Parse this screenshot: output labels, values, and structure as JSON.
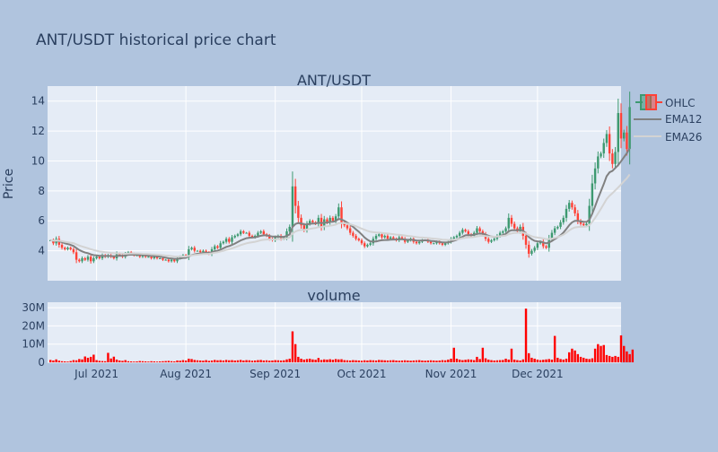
{
  "figure_title": "ANT/USDT historical price chart",
  "colors": {
    "paper_bg": "#b0c4de",
    "plot_bg": "#e5ecf6",
    "grid": "#ffffff",
    "text": "#2a3f5f",
    "increasing": "#3d9970",
    "decreasing": "#ff4136",
    "ema12": "#808080",
    "ema26": "#d3d3d3",
    "volume": "#ff0000"
  },
  "chart_data": [
    {
      "type": "candlestick",
      "title": "ANT/USDT",
      "ylabel": "Price",
      "xlim": [
        "2021-06-14",
        "2021-12-30"
      ],
      "ylim": [
        2,
        15
      ],
      "yticks": [
        4,
        6,
        8,
        10,
        12,
        14
      ],
      "xticks": [
        {
          "date": "2021-07-01",
          "label": "Jul 2021"
        },
        {
          "date": "2021-08-01",
          "label": "Aug 2021"
        },
        {
          "date": "2021-09-01",
          "label": "Sep 2021"
        },
        {
          "date": "2021-10-01",
          "label": "Oct 2021"
        },
        {
          "date": "2021-11-01",
          "label": "Nov 2021"
        },
        {
          "date": "2021-12-01",
          "label": "Dec 2021"
        }
      ],
      "legend": {
        "placement": "top-right",
        "entries": [
          "OHLC",
          "EMA12",
          "EMA26"
        ]
      },
      "start_date": "2021-06-15",
      "close": [
        4.7,
        4.5,
        4.8,
        4.4,
        4.2,
        4.1,
        4.2,
        4.1,
        3.9,
        3.4,
        3.3,
        3.5,
        3.4,
        3.6,
        3.3,
        3.5,
        3.6,
        3.5,
        3.7,
        3.6,
        3.7,
        3.6,
        3.5,
        3.8,
        3.7,
        3.6,
        3.8,
        3.9,
        3.8,
        3.7,
        3.7,
        3.6,
        3.7,
        3.6,
        3.6,
        3.5,
        3.6,
        3.5,
        3.5,
        3.4,
        3.4,
        3.3,
        3.4,
        3.3,
        3.5,
        3.6,
        3.7,
        3.6,
        4.1,
        4.2,
        4.0,
        4.0,
        3.9,
        4.0,
        3.9,
        3.8,
        4.1,
        4.3,
        4.2,
        4.5,
        4.6,
        4.8,
        4.6,
        4.9,
        5.0,
        5.1,
        5.3,
        5.2,
        5.2,
        5.0,
        4.9,
        5.0,
        5.2,
        5.3,
        5.1,
        5.0,
        4.8,
        4.7,
        4.9,
        5.0,
        4.8,
        4.9,
        5.3,
        5.6,
        8.3,
        7.0,
        6.2,
        5.7,
        5.4,
        5.8,
        6.0,
        5.9,
        5.8,
        6.2,
        5.6,
        6.1,
        5.9,
        6.2,
        6.0,
        6.3,
        6.9,
        5.9,
        5.7,
        5.5,
        5.2,
        5.0,
        4.8,
        4.7,
        4.5,
        4.3,
        4.4,
        4.5,
        4.8,
        5.0,
        5.1,
        4.9,
        5.0,
        4.8,
        4.9,
        4.8,
        4.7,
        4.9,
        4.8,
        4.6,
        4.7,
        4.8,
        4.6,
        4.5,
        4.6,
        4.7,
        4.7,
        4.6,
        4.5,
        4.5,
        4.6,
        4.5,
        4.4,
        4.5,
        4.6,
        4.8,
        4.9,
        5.0,
        5.2,
        5.4,
        5.3,
        5.1,
        5.0,
        5.2,
        5.5,
        5.3,
        5.1,
        4.8,
        4.6,
        4.7,
        4.8,
        5.0,
        5.2,
        5.3,
        5.5,
        6.2,
        5.8,
        5.5,
        5.3,
        5.6,
        5.0,
        4.4,
        3.8,
        4.0,
        4.2,
        4.5,
        4.6,
        4.3,
        4.2,
        4.8,
        5.2,
        5.5,
        5.6,
        5.9,
        6.2,
        6.8,
        7.2,
        6.9,
        6.5,
        6.0,
        5.8,
        5.7,
        5.8,
        7.0,
        8.5,
        9.5,
        10.3,
        10.5,
        11.2,
        11.8,
        10.5,
        9.8,
        10.6,
        13.2,
        11.5,
        11.9,
        10.8,
        13.6
      ],
      "series": [
        {
          "name": "EMA12",
          "values": [
            4.7,
            4.67,
            4.68,
            4.64,
            4.57,
            4.5,
            4.45,
            4.39,
            4.32,
            4.18,
            4.05,
            3.96,
            3.88,
            3.84,
            3.76,
            3.71,
            3.69,
            3.66,
            3.66,
            3.65,
            3.66,
            3.65,
            3.63,
            3.65,
            3.67,
            3.66,
            3.68,
            3.73,
            3.74,
            3.74,
            3.74,
            3.72,
            3.72,
            3.7,
            3.68,
            3.66,
            3.65,
            3.63,
            3.61,
            3.57,
            3.54,
            3.5,
            3.48,
            3.46,
            3.47,
            3.48,
            3.52,
            3.53,
            3.62,
            3.71,
            3.76,
            3.8,
            3.82,
            3.85,
            3.87,
            3.86,
            3.9,
            3.97,
            4.0,
            4.08,
            4.16,
            4.26,
            4.31,
            4.39,
            4.48,
            4.58,
            4.69,
            4.77,
            4.84,
            4.87,
            4.88,
            4.9,
            4.95,
            5.0,
            5.03,
            5.03,
            4.99,
            4.95,
            4.94,
            4.95,
            4.93,
            4.93,
            4.99,
            5.09,
            5.58,
            5.79,
            5.85,
            5.83,
            5.76,
            5.77,
            5.8,
            5.82,
            5.82,
            5.88,
            5.84,
            5.88,
            5.88,
            5.93,
            5.94,
            5.99,
            6.13,
            6.09,
            6.0,
            5.88,
            5.74,
            5.6,
            5.43,
            5.27,
            5.09,
            4.89,
            4.74,
            4.63,
            4.61,
            4.62,
            4.67,
            4.7,
            4.72,
            4.72,
            4.74,
            4.75,
            4.75,
            4.77,
            4.77,
            4.75,
            4.73,
            4.74,
            4.72,
            4.69,
            4.68,
            4.69,
            4.7,
            4.69,
            4.66,
            4.64,
            4.62,
            4.6,
            4.56,
            4.55,
            4.56,
            4.61,
            4.67,
            4.74,
            4.83,
            4.94,
            5.03,
            5.05,
            5.04,
            5.07,
            5.13,
            5.15,
            5.14,
            5.08,
            5.0,
            4.95,
            4.93,
            4.94,
            4.98,
            5.05,
            5.13,
            5.3,
            5.37,
            5.38,
            5.37,
            5.41,
            5.34,
            5.15,
            4.92,
            4.77,
            4.66,
            4.63,
            4.62,
            4.56,
            4.5,
            4.55,
            4.65,
            4.78,
            4.9,
            5.04,
            5.22,
            5.45,
            5.71,
            5.9,
            6.0,
            6.0,
            5.96,
            5.94,
            5.93,
            6.07,
            6.48,
            6.97,
            7.5,
            7.97,
            8.45,
            8.98,
            9.24,
            9.34,
            9.53,
            9.72,
            9.98,
            10.25,
            10.51,
            10.86
          ]
        },
        {
          "name": "EMA26",
          "values": [
            4.7,
            4.68,
            4.69,
            4.67,
            4.64,
            4.6,
            4.57,
            4.54,
            4.51,
            4.43,
            4.35,
            4.29,
            4.23,
            4.17,
            4.1,
            4.05,
            4.0,
            3.95,
            3.93,
            3.9,
            3.88,
            3.86,
            3.84,
            3.83,
            3.82,
            3.81,
            3.8,
            3.81,
            3.82,
            3.82,
            3.82,
            3.81,
            3.8,
            3.79,
            3.78,
            3.76,
            3.75,
            3.74,
            3.72,
            3.7,
            3.68,
            3.66,
            3.64,
            3.62,
            3.61,
            3.61,
            3.62,
            3.62,
            3.66,
            3.69,
            3.72,
            3.74,
            3.76,
            3.78,
            3.79,
            3.8,
            3.83,
            3.87,
            3.9,
            3.95,
            4.0,
            4.06,
            4.1,
            4.16,
            4.23,
            4.3,
            4.38,
            4.44,
            4.5,
            4.54,
            4.57,
            4.6,
            4.65,
            4.7,
            4.73,
            4.75,
            4.76,
            4.75,
            4.76,
            4.78,
            4.78,
            4.79,
            4.83,
            4.89,
            5.15,
            5.29,
            5.36,
            5.39,
            5.39,
            5.42,
            5.46,
            5.5,
            5.52,
            5.58,
            5.59,
            5.63,
            5.64,
            5.68,
            5.7,
            5.75,
            5.85,
            5.85,
            5.84,
            5.81,
            5.77,
            5.71,
            5.64,
            5.56,
            5.48,
            5.4,
            5.33,
            5.27,
            5.24,
            5.22,
            5.21,
            5.19,
            5.17,
            5.15,
            5.13,
            5.11,
            5.08,
            5.07,
            5.05,
            5.02,
            4.99,
            4.97,
            4.94,
            4.91,
            4.89,
            4.88,
            4.87,
            4.85,
            4.83,
            4.81,
            4.79,
            4.77,
            4.74,
            4.73,
            4.72,
            4.73,
            4.74,
            4.76,
            4.79,
            4.84,
            4.87,
            4.89,
            4.9,
            4.92,
            4.96,
            4.99,
            5.0,
            4.98,
            4.96,
            4.95,
            4.94,
            4.95,
            4.97,
            4.99,
            5.02,
            5.11,
            5.16,
            5.19,
            5.2,
            5.23,
            5.21,
            5.15,
            5.05,
            4.97,
            4.91,
            4.88,
            4.86,
            4.82,
            4.78,
            4.78,
            4.81,
            4.86,
            4.91,
            4.99,
            5.08,
            5.21,
            5.36,
            5.48,
            5.56,
            5.59,
            5.6,
            5.6,
            5.62,
            5.72,
            5.93,
            6.19,
            6.49,
            6.8,
            7.12,
            7.45,
            7.68,
            7.85,
            8.04,
            8.23,
            8.43,
            8.64,
            8.84,
            9.1
          ]
        }
      ]
    },
    {
      "type": "bar",
      "title": "volume",
      "ylim": [
        0,
        33000000
      ],
      "yticks": [
        {
          "value": 0,
          "label": "0"
        },
        {
          "value": 10000000,
          "label": "10M"
        },
        {
          "value": 20000000,
          "label": "20M"
        },
        {
          "value": 30000000,
          "label": "30M"
        }
      ],
      "start_date": "2021-06-15",
      "values": [
        1.3,
        1.0,
        1.6,
        0.9,
        0.6,
        0.5,
        0.4,
        0.7,
        1.2,
        1.1,
        1.8,
        1.6,
        3.2,
        2.5,
        3.0,
        4.2,
        1.2,
        0.8,
        0.7,
        0.6,
        5.2,
        2.1,
        3.1,
        1.5,
        1.0,
        0.8,
        1.2,
        0.6,
        0.5,
        0.4,
        0.5,
        0.7,
        0.6,
        0.5,
        0.4,
        0.6,
        0.5,
        0.4,
        0.5,
        0.6,
        0.7,
        0.8,
        0.6,
        0.5,
        1.0,
        0.9,
        1.2,
        1.0,
        2.0,
        1.8,
        1.3,
        1.1,
        1.0,
        0.9,
        1.2,
        0.8,
        1.0,
        1.3,
        1.1,
        1.2,
        1.0,
        1.3,
        1.1,
        1.2,
        1.0,
        1.1,
        1.3,
        1.0,
        1.2,
        1.1,
        0.9,
        1.0,
        1.2,
        1.3,
        1.0,
        1.1,
        0.9,
        1.0,
        1.2,
        1.1,
        1.0,
        1.1,
        1.6,
        2.0,
        17.0,
        10.0,
        3.0,
        2.0,
        1.5,
        1.8,
        2.0,
        1.6,
        1.4,
        2.4,
        1.3,
        1.6,
        1.5,
        1.7,
        1.4,
        1.8,
        1.6,
        1.7,
        1.2,
        1.1,
        1.0,
        1.2,
        1.1,
        1.0,
        0.9,
        1.1,
        1.0,
        1.2,
        1.1,
        1.0,
        1.3,
        1.2,
        1.1,
        1.0,
        1.1,
        1.2,
        1.0,
        0.9,
        1.0,
        1.1,
        1.0,
        0.9,
        1.0,
        1.1,
        1.2,
        1.0,
        0.9,
        1.0,
        1.1,
        1.0,
        0.9,
        1.0,
        1.2,
        1.1,
        1.5,
        2.0,
        8.0,
        2.0,
        1.5,
        1.2,
        1.4,
        1.6,
        1.5,
        1.2,
        3.0,
        1.8,
        8.0,
        2.2,
        1.5,
        1.2,
        1.0,
        1.1,
        1.2,
        1.3,
        2.0,
        1.5,
        7.5,
        1.5,
        1.2,
        1.0,
        1.6,
        29.5,
        5.0,
        2.5,
        2.0,
        1.5,
        1.2,
        1.4,
        1.6,
        1.8,
        1.5,
        14.5,
        2.5,
        1.8,
        1.5,
        2.0,
        5.5,
        7.5,
        6.5,
        4.5,
        3.0,
        2.5,
        2.0,
        1.8,
        2.2,
        7.5,
        10.0,
        9.0,
        9.5,
        4.0,
        3.5,
        3.0,
        3.5,
        3.0,
        14.8,
        9.0,
        6.0,
        4.5,
        7.0
      ]
    }
  ]
}
